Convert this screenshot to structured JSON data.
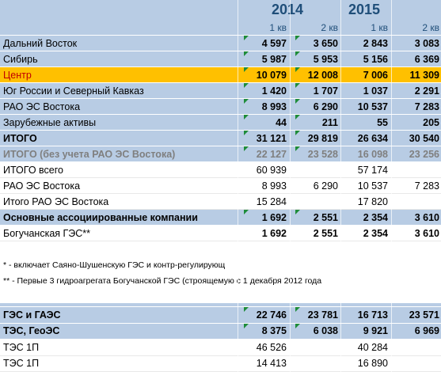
{
  "header": {
    "years": [
      "2014",
      "2015"
    ],
    "quarters": [
      "1 кв",
      "2 кв",
      "1 кв",
      "2 кв"
    ]
  },
  "table": {
    "rows": [
      {
        "label": "Дальний Восток",
        "cells": [
          "4 597",
          "3 650",
          "2 843",
          "3 083"
        ]
      },
      {
        "label": "Сибирь",
        "cells": [
          "5 987",
          "5 953",
          "5 156",
          "6 369"
        ]
      },
      {
        "label": "Центр",
        "cells": [
          "10 079",
          "12 008",
          "7 006",
          "11 309"
        ]
      },
      {
        "label": "Юг России и Северный Кавказ",
        "cells": [
          "1 420",
          "1 707",
          "1 037",
          "2 291"
        ]
      },
      {
        "label": "РАО ЭС Востока",
        "cells": [
          "8 993",
          "6 290",
          "10 537",
          "7 283"
        ]
      },
      {
        "label": "Зарубежные активы",
        "cells": [
          "44",
          "211",
          "55",
          "205"
        ]
      },
      {
        "label": "ИТОГО",
        "cells": [
          "31 121",
          "29 819",
          "26 634",
          "30 540"
        ]
      },
      {
        "label": "ИТОГО (без учета РАО ЭС Востока)",
        "cells": [
          "22 127",
          "23 528",
          "16 098",
          "23 256"
        ]
      },
      {
        "label": "ИТОГО всего",
        "cells": [
          "60 939",
          null,
          "57 174",
          null
        ]
      },
      {
        "label": "РАО ЭС Востока",
        "cells": [
          "8 993",
          "6 290",
          "10 537",
          "7 283"
        ]
      },
      {
        "label": "Итого РАО ЭС Востока",
        "cells": [
          "15 284",
          null,
          "17 820",
          null
        ]
      },
      {
        "label": "Основные ассоциированные компании",
        "cells": [
          "1 692",
          "2 551",
          "2 354",
          "3 610"
        ]
      },
      {
        "label": "Богучанская ГЭС**",
        "cells": [
          "1 692",
          "2 551",
          "2 354",
          "3 610"
        ]
      }
    ]
  },
  "notes": [
    "* - включает Саяно-Шушенскую ГЭС и контр-регулирующ",
    "** - Первые 3 гидроагрегата Богучанской ГЭС (строящемую с 1 декабря 2012 года"
  ],
  "table2": {
    "rows": [
      {
        "label": "ГЭС и ГАЭС",
        "cells": [
          "22 746",
          "23 781",
          "16 713",
          "23 571"
        ]
      },
      {
        "label": "ТЭС, ГеоЭС",
        "cells": [
          "8 375",
          "6 038",
          "9 921",
          "6 969"
        ]
      },
      {
        "label": "ТЭС 1П",
        "cells": [
          "46 526",
          null,
          "40 284",
          null
        ]
      },
      {
        "label": "ТЭС 1П",
        "cells": [
          "14 413",
          null,
          "16 890",
          null
        ]
      }
    ]
  }
}
